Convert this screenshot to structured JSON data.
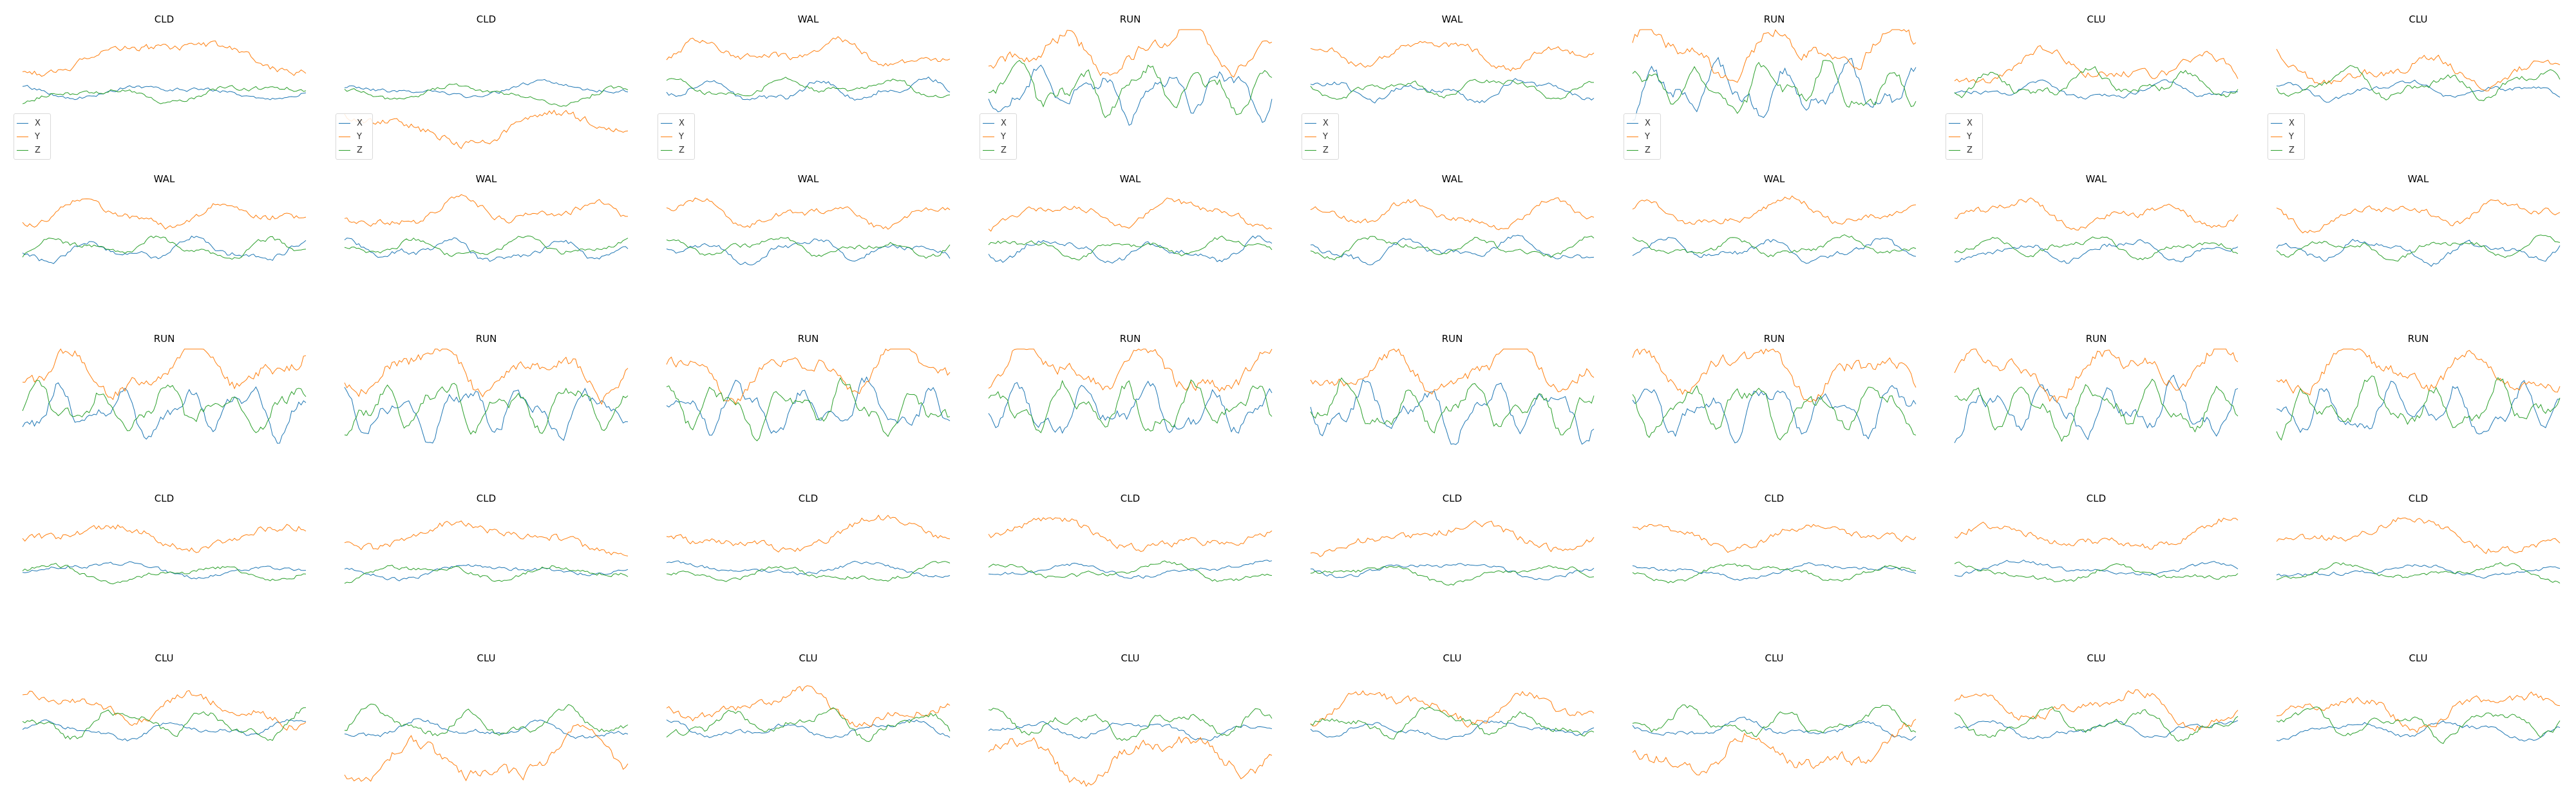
{
  "chart_data": {
    "type": "line",
    "layout": "5x8 small multiples",
    "axes_visible": false,
    "grid": false,
    "legend_placement": "bottom-left (first row only)",
    "series_colors": {
      "X": "#1f77b4",
      "Y": "#ff7f0e",
      "Z": "#2ca02c"
    },
    "legend_entries": [
      "X",
      "Y",
      "Z"
    ],
    "panel_titles": [
      [
        "CLD",
        "CLD",
        "WAL",
        "RUN",
        "WAL",
        "RUN",
        "CLU",
        "CLU"
      ],
      [
        "WAL",
        "WAL",
        "WAL",
        "WAL",
        "WAL",
        "WAL",
        "WAL",
        "WAL"
      ],
      [
        "RUN",
        "RUN",
        "RUN",
        "RUN",
        "RUN",
        "RUN",
        "RUN",
        "RUN"
      ],
      [
        "CLD",
        "CLD",
        "CLD",
        "CLD",
        "CLD",
        "CLD",
        "CLD",
        "CLD"
      ],
      [
        "CLU",
        "CLU",
        "CLU",
        "CLU",
        "CLU",
        "CLU",
        "CLU",
        "CLU"
      ]
    ],
    "samples_per_series": 120,
    "class_profiles": {
      "CLD": {
        "X": {
          "level": 0.0,
          "amp": 0.12,
          "freq": 0.05
        },
        "Y": {
          "level": 0.55,
          "amp": 0.25,
          "freq": 0.04
        },
        "Z": {
          "level": -0.05,
          "amp": 0.14,
          "freq": 0.06
        }
      },
      "WAL": {
        "X": {
          "level": 0.0,
          "amp": 0.18,
          "freq": 0.09
        },
        "Y": {
          "level": 0.6,
          "amp": 0.22,
          "freq": 0.07
        },
        "Z": {
          "level": 0.05,
          "amp": 0.16,
          "freq": 0.09
        }
      },
      "RUN": {
        "X": {
          "level": 0.0,
          "amp": 0.4,
          "freq": 0.15
        },
        "Y": {
          "level": 0.65,
          "amp": 0.4,
          "freq": 0.08
        },
        "Z": {
          "level": 0.05,
          "amp": 0.38,
          "freq": 0.15
        }
      },
      "CLU": {
        "X": {
          "level": 0.0,
          "amp": 0.14,
          "freq": 0.08
        },
        "Y": {
          "level": 0.35,
          "amp": 0.28,
          "freq": 0.06
        },
        "Z": {
          "level": 0.1,
          "amp": 0.22,
          "freq": 0.1
        }
      }
    },
    "panel_overrides": {
      "0-1": {
        "Y": {
          "level": -0.55,
          "amp": 0.28
        }
      },
      "4-1": {
        "Y": {
          "level": -0.5,
          "amp": 0.4
        }
      },
      "4-3": {
        "Y": {
          "level": -0.4,
          "amp": 0.4
        }
      },
      "4-5": {
        "Y": {
          "level": -0.35,
          "amp": 0.4
        }
      }
    },
    "ylim": [
      -1,
      1
    ]
  }
}
